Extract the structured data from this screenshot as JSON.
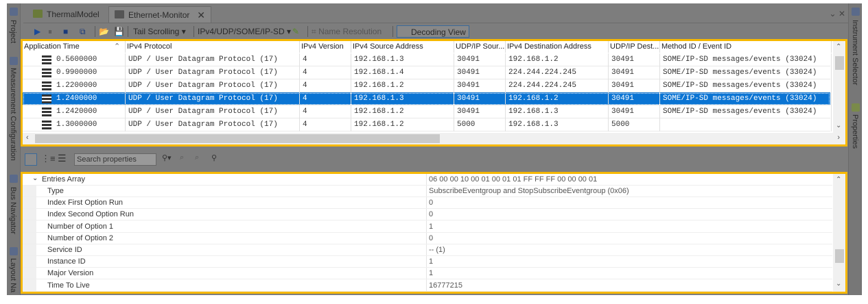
{
  "left_sidebar": [
    "Project",
    "Measurement Configuration",
    "Bus Navigator",
    "Layout Na"
  ],
  "right_sidebar": [
    "Instrument Selector",
    "Properties"
  ],
  "tabs": [
    {
      "label": "ThermalModel",
      "active": false
    },
    {
      "label": "Ethernet-Monitor",
      "active": true
    }
  ],
  "toolbar": {
    "tail_scrolling": "Tail Scrolling",
    "protocol_filter": "IPv4/UDP/SOME/IP-SD",
    "name_resolution": "Name Resolution",
    "decoding_view": "Decoding View"
  },
  "table": {
    "columns": [
      "Application Time",
      "IPv4 Protocol",
      "IPv4 Version",
      "IPv4 Source Address",
      "UDP/IP Sour...",
      "IPv4 Destination Address",
      "UDP/IP Dest...",
      "Method ID / Event ID"
    ],
    "sort_column": "Application Time",
    "rows": [
      [
        "0.5600000",
        "UDP / User Datagram Protocol (17)",
        "4",
        "192.168.1.3",
        "30491",
        "192.168.1.2",
        "30491",
        "SOME/IP-SD messages/events (33024)"
      ],
      [
        "0.9900000",
        "UDP / User Datagram Protocol (17)",
        "4",
        "192.168.1.4",
        "30491",
        "224.244.224.245",
        "30491",
        "SOME/IP-SD messages/events (33024)"
      ],
      [
        "1.2200000",
        "UDP / User Datagram Protocol (17)",
        "4",
        "192.168.1.2",
        "30491",
        "224.244.224.245",
        "30491",
        "SOME/IP-SD messages/events (33024)"
      ],
      [
        "1.2400000",
        "UDP / User Datagram Protocol (17)",
        "4",
        "192.168.1.3",
        "30491",
        "192.168.1.2",
        "30491",
        "SOME/IP-SD messages/events (33024)"
      ],
      [
        "1.2420000",
        "UDP / User Datagram Protocol (17)",
        "4",
        "192.168.1.2",
        "30491",
        "192.168.1.3",
        "30491",
        "SOME/IP-SD messages/events (33024)"
      ],
      [
        "1.3000000",
        "UDP / User Datagram Protocol (17)",
        "4",
        "192.168.1.2",
        "5000",
        "192.168.1.3",
        "5000",
        ""
      ]
    ],
    "selected_row": 3
  },
  "properties": {
    "search_placeholder": "Search properties",
    "group": {
      "name": "Entries Array",
      "value": "06 00 00 10 00 01 00 01 01 FF FF FF 00 00 00 01"
    },
    "items": [
      {
        "name": "Type",
        "value": "SubscribeEventgroup and StopSubscribeEventgroup (0x06)"
      },
      {
        "name": "Index First Option Run",
        "value": "0"
      },
      {
        "name": "Index Second Option Run",
        "value": "0"
      },
      {
        "name": "Number of Option 1",
        "value": "1"
      },
      {
        "name": "Number of Option 2",
        "value": "0"
      },
      {
        "name": "Service ID",
        "value": "-- (1)"
      },
      {
        "name": "Instance ID",
        "value": "1"
      },
      {
        "name": "Major Version",
        "value": "1"
      },
      {
        "name": "Time To Live",
        "value": "16777215"
      }
    ]
  },
  "colors": {
    "highlight": "#f6b800",
    "selection": "#0a74d3"
  }
}
